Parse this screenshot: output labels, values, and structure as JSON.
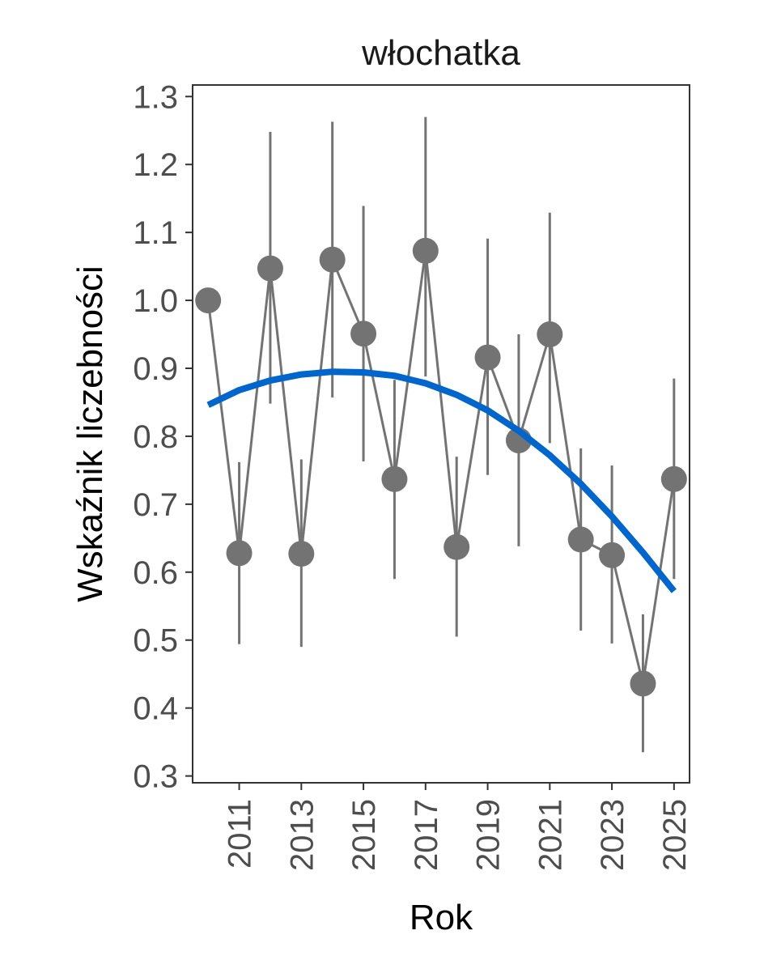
{
  "chart_data": {
    "type": "line",
    "title": "włochatka",
    "xlabel": "Rok",
    "ylabel": "Wskaźnik liczebności",
    "xlim": [
      2009.5,
      2025.5
    ],
    "ylim": [
      0.29,
      1.317
    ],
    "x_ticks": [
      2011,
      2013,
      2015,
      2017,
      2019,
      2021,
      2023,
      2025
    ],
    "y_ticks": [
      0.3,
      0.4,
      0.5,
      0.6,
      0.7,
      0.8,
      0.9,
      1.0,
      1.1,
      1.2,
      1.3
    ],
    "grid": false,
    "series": [
      {
        "x": [
          2010,
          2011,
          2012,
          2013,
          2014,
          2015,
          2016,
          2017,
          2018,
          2019,
          2020,
          2021,
          2022,
          2023,
          2024,
          2025
        ],
        "y": [
          1.0,
          0.628,
          1.047,
          0.627,
          1.06,
          0.951,
          0.737,
          1.073,
          0.637,
          0.916,
          0.794,
          0.95,
          0.648,
          0.625,
          0.436,
          0.737
        ],
        "lower": [
          null,
          0.494,
          0.848,
          0.49,
          0.857,
          0.763,
          0.59,
          0.888,
          0.505,
          0.743,
          0.638,
          0.79,
          0.514,
          0.495,
          0.335,
          0.59
        ],
        "upper": [
          null,
          0.762,
          1.248,
          0.766,
          1.263,
          1.139,
          0.883,
          1.27,
          0.77,
          1.091,
          0.95,
          1.129,
          0.782,
          0.757,
          0.538,
          0.885
        ],
        "color": "#737373"
      },
      {
        "type": "trend",
        "x": [
          2010,
          2011,
          2012,
          2013,
          2014,
          2015,
          2016,
          2017,
          2018,
          2019,
          2020,
          2021,
          2022,
          2023,
          2024,
          2025
        ],
        "y": [
          0.846,
          0.868,
          0.882,
          0.891,
          0.895,
          0.894,
          0.889,
          0.878,
          0.861,
          0.838,
          0.808,
          0.772,
          0.73,
          0.682,
          0.629,
          0.572
        ],
        "color": "#0066cc"
      }
    ]
  }
}
